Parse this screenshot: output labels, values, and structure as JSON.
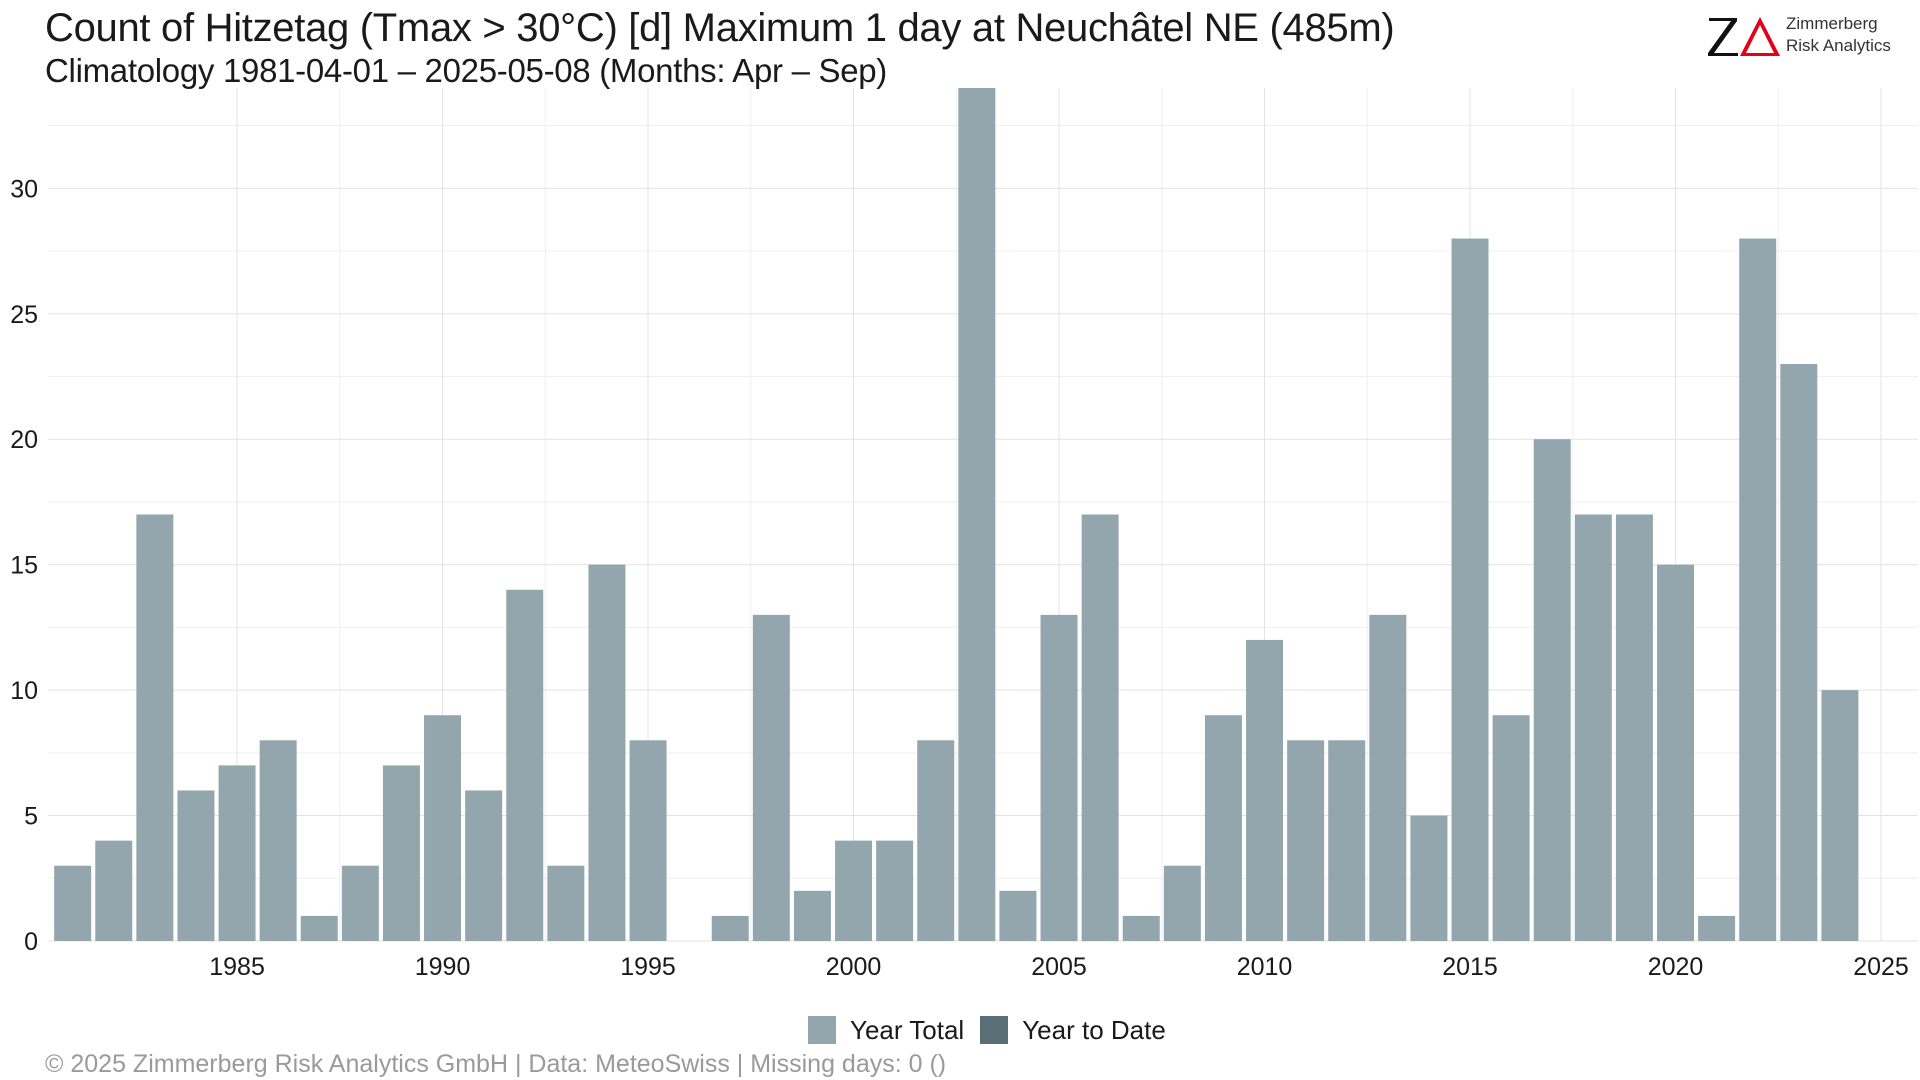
{
  "header": {
    "title": "Count of Hitzetag (Tmax > 30°C) [d] Maximum 1 day at Neuchâtel  NE (485m)",
    "subtitle": "Climatology 1981-04-01 – 2025-05-08 (Months: Apr – Sep)"
  },
  "logo": {
    "letters": "ZΔ",
    "name_line1": "Zimmerberg",
    "name_line2": "Risk Analytics"
  },
  "legend": {
    "items": [
      {
        "label": "Year Total",
        "color": "#93a6ad"
      },
      {
        "label": "Year to Date",
        "color": "#5a6e75"
      }
    ]
  },
  "footer": {
    "text": "©  2025 Zimmerberg Risk Analytics GmbH | Data: MeteoSwiss | Missing days: 0 ()"
  },
  "colors": {
    "bar": "#93a6ad",
    "bar_ytd": "#5a6e75",
    "grid": "#e3e3e3",
    "axis_text": "#1a1a1a"
  },
  "chart_data": {
    "type": "bar",
    "title": "Count of Hitzetag (Tmax > 30°C) [d] Maximum 1 day at Neuchâtel  NE (485m)",
    "subtitle": "Climatology 1981-04-01 – 2025-05-08 (Months: Apr – Sep)",
    "xlabel": "",
    "ylabel": "",
    "xlim": [
      1980.4,
      2025.9
    ],
    "ylim": [
      0,
      34
    ],
    "x_ticks": [
      1985,
      1990,
      1995,
      2000,
      2005,
      2010,
      2015,
      2020,
      2025
    ],
    "y_ticks": [
      0,
      5,
      10,
      15,
      20,
      25,
      30
    ],
    "grid": true,
    "legend_position": "bottom",
    "categories": [
      1981,
      1982,
      1983,
      1984,
      1985,
      1986,
      1987,
      1988,
      1989,
      1990,
      1991,
      1992,
      1993,
      1994,
      1995,
      1996,
      1997,
      1998,
      1999,
      2000,
      2001,
      2002,
      2003,
      2004,
      2005,
      2006,
      2007,
      2008,
      2009,
      2010,
      2011,
      2012,
      2013,
      2014,
      2015,
      2016,
      2017,
      2018,
      2019,
      2020,
      2021,
      2022,
      2023,
      2024,
      2025
    ],
    "series": [
      {
        "name": "Year Total",
        "values": [
          3,
          4,
          17,
          6,
          7,
          8,
          1,
          3,
          7,
          9,
          6,
          14,
          3,
          15,
          8,
          0,
          1,
          13,
          2,
          4,
          4,
          8,
          34,
          2,
          13,
          17,
          1,
          3,
          9,
          12,
          8,
          8,
          13,
          5,
          28,
          9,
          20,
          17,
          17,
          15,
          1,
          28,
          23,
          10,
          0
        ]
      },
      {
        "name": "Year to Date",
        "values": [
          0,
          0,
          0,
          0,
          0,
          0,
          0,
          0,
          0,
          0,
          0,
          0,
          0,
          0,
          0,
          0,
          0,
          0,
          0,
          0,
          0,
          0,
          0,
          0,
          0,
          0,
          0,
          0,
          0,
          0,
          0,
          0,
          0,
          0,
          0,
          0,
          0,
          0,
          0,
          0,
          0,
          0,
          0,
          0,
          0
        ]
      }
    ]
  }
}
